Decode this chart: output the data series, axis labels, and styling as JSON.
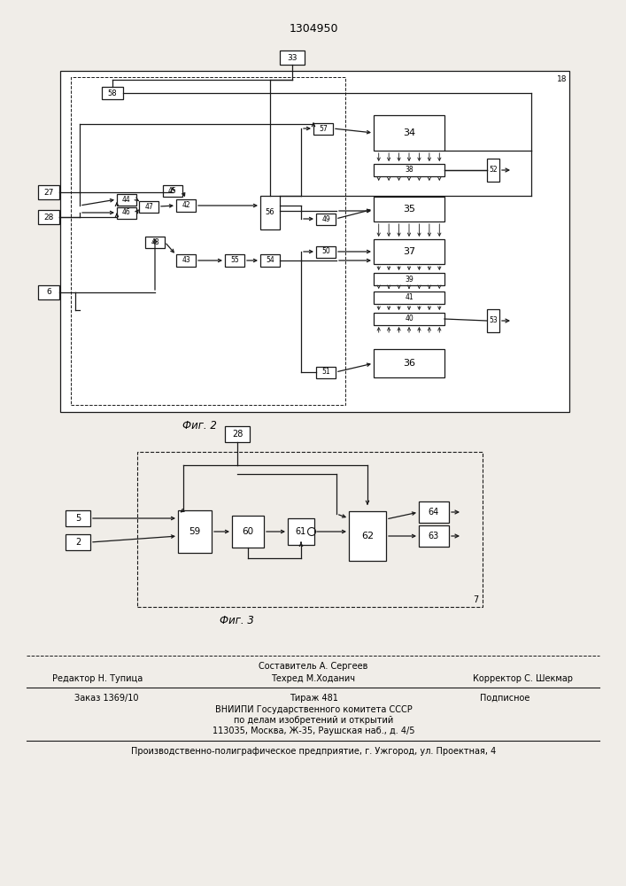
{
  "title": "1304950",
  "fig2_label": "Фиг. 2",
  "fig3_label": "Фиг. 3",
  "footer_line1": "Составитель А. Сергеев",
  "footer_line2_left": "Редактор Н. Тупица",
  "footer_line2_mid": "Техред М.Ходанич",
  "footer_line2_right": "Корректор С. Шекмар",
  "footer_line3_a": "Заказ 1369/10",
  "footer_line3_b": "Тираж 481",
  "footer_line3_c": "Подписное",
  "footer_line4": "ВНИИПИ Государственного комитета СССР",
  "footer_line5": "по делам изобретений и открытий",
  "footer_line6": "113035, Москва, Ж-35, Раушская наб., д. 4/5",
  "footer_line7": "Производственно-полиграфическое предприятие, г. Ужгород, ул. Проектная, 4",
  "bg_color": "#f0ede8",
  "box_facecolor": "#ffffff",
  "line_color": "#1a1a1a"
}
